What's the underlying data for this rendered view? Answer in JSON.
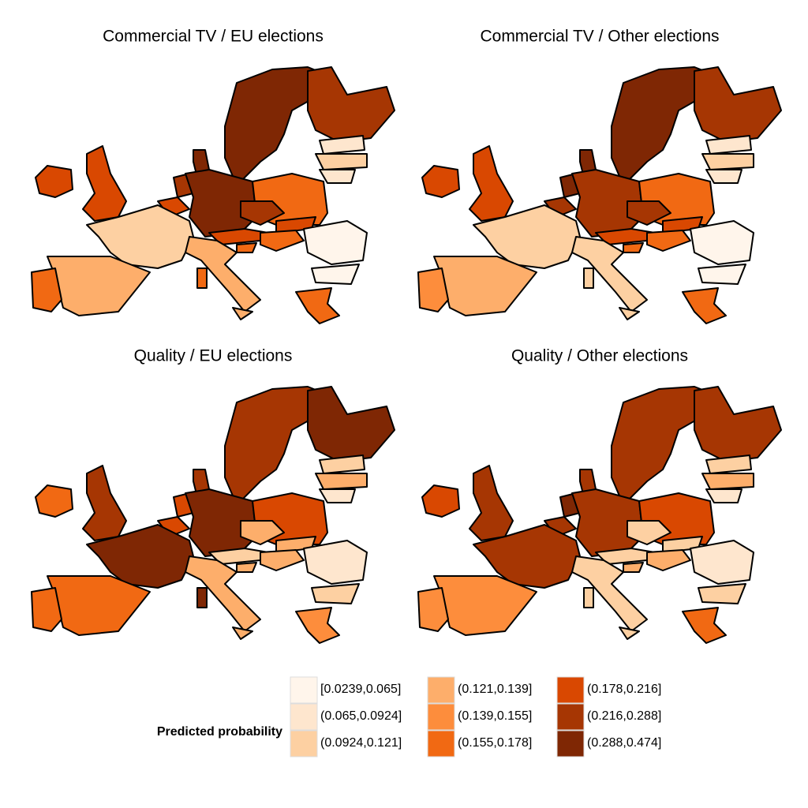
{
  "panels": [
    {
      "title": "Commercial TV / EU elections",
      "fills": [
        8,
        7,
        1,
        2,
        1,
        6,
        6,
        8,
        7,
        6,
        8,
        5,
        2,
        7,
        6,
        6,
        5,
        5,
        0,
        0,
        3,
        5,
        3,
        3,
        5,
        5
      ]
    },
    {
      "title": "Commercial TV / Other elections",
      "fills": [
        8,
        7,
        1,
        2,
        1,
        6,
        6,
        8,
        8,
        7,
        7,
        5,
        2,
        7,
        6,
        6,
        5,
        5,
        0,
        0,
        2,
        2,
        2,
        3,
        4,
        5
      ]
    },
    {
      "title": "Quality / EU elections",
      "fills": [
        7,
        8,
        2,
        3,
        1,
        5,
        7,
        7,
        6,
        6,
        8,
        6,
        8,
        3,
        2,
        3,
        3,
        3,
        1,
        2,
        3,
        8,
        3,
        5,
        5,
        4
      ]
    },
    {
      "title": "Quality / Other elections",
      "fills": [
        7,
        7,
        2,
        3,
        1,
        6,
        7,
        7,
        8,
        7,
        7,
        6,
        7,
        2,
        2,
        2,
        3,
        3,
        1,
        2,
        2,
        2,
        2,
        4,
        4,
        5
      ]
    }
  ],
  "legend": {
    "title": "Predicted probability",
    "classes": [
      {
        "label": "[0.0239,0.065]",
        "color": "#fff5eb"
      },
      {
        "label": "(0.065,0.0924]",
        "color": "#fee6ce"
      },
      {
        "label": "(0.0924,0.121]",
        "color": "#fdd0a2"
      },
      {
        "label": "(0.121,0.139]",
        "color": "#fdae6b"
      },
      {
        "label": "(0.139,0.155]",
        "color": "#fd8d3c"
      },
      {
        "label": "(0.155,0.178]",
        "color": "#f16913"
      },
      {
        "label": "(0.178,0.216]",
        "color": "#d94801"
      },
      {
        "label": "(0.216,0.288]",
        "color": "#a63603"
      },
      {
        "label": "(0.288,0.474]",
        "color": "#7f2704"
      }
    ]
  }
}
